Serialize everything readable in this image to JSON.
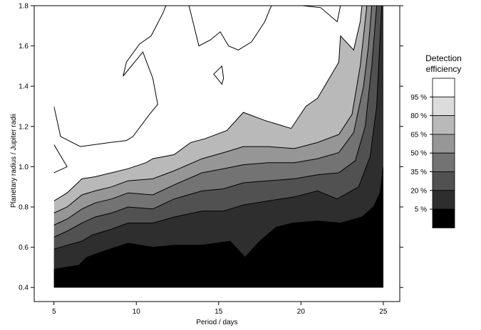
{
  "chart_data": {
    "type": "contour",
    "xlabel": "Period / days",
    "ylabel": "Planetary radius / Jupiter radii",
    "xlim": [
      3.8,
      26.0
    ],
    "ylim": [
      0.33,
      1.8
    ],
    "x_ticks": [
      {
        "value": 5,
        "label": "5"
      },
      {
        "value": 10,
        "label": "10"
      },
      {
        "value": 15,
        "label": "15"
      },
      {
        "value": 20,
        "label": "20"
      },
      {
        "value": 25,
        "label": "25"
      }
    ],
    "y_ticks": [
      {
        "value": 0.4,
        "label": "0.4"
      },
      {
        "value": 0.6,
        "label": "0.6"
      },
      {
        "value": 0.8,
        "label": "0.8"
      },
      {
        "value": 1.0,
        "label": "1.0"
      },
      {
        "value": 1.2,
        "label": "1.2"
      },
      {
        "value": 1.4,
        "label": "1.4"
      },
      {
        "value": 1.6,
        "label": "1.6"
      },
      {
        "value": 1.8,
        "label": "1.8"
      }
    ],
    "data_extent": {
      "x": [
        5,
        25
      ],
      "y": [
        0.4,
        1.8
      ]
    },
    "colorbar": {
      "title_lines": [
        "Detection",
        "efficiency"
      ],
      "bands": [
        {
          "lower": 95,
          "upper": 100,
          "color": "#ffffff"
        },
        {
          "lower": 80,
          "upper": 95,
          "color": "#dcdcdc"
        },
        {
          "lower": 65,
          "upper": 80,
          "color": "#b9b9b9"
        },
        {
          "lower": 50,
          "upper": 65,
          "color": "#969696"
        },
        {
          "lower": 35,
          "upper": 50,
          "color": "#737373"
        },
        {
          "lower": 20,
          "upper": 35,
          "color": "#515151"
        },
        {
          "lower": 5,
          "upper": 20,
          "color": "#2e2e2e"
        },
        {
          "lower": 0,
          "upper": 5,
          "color": "#000000"
        }
      ],
      "labels": [
        "95 %",
        "80 %",
        "65 %",
        "50 %",
        "35 %",
        "20 %",
        "5 %"
      ]
    },
    "contours": [
      {
        "level": 5,
        "points": [
          [
            5,
            0.49
          ],
          [
            5.7,
            0.5
          ],
          [
            6.5,
            0.51
          ],
          [
            7,
            0.55
          ],
          [
            8,
            0.58
          ],
          [
            9.5,
            0.62
          ],
          [
            11,
            0.6
          ],
          [
            12.3,
            0.61
          ],
          [
            14,
            0.61
          ],
          [
            15.7,
            0.63
          ],
          [
            16.6,
            0.55
          ],
          [
            17.5,
            0.63
          ],
          [
            18.5,
            0.7
          ],
          [
            19.5,
            0.72
          ],
          [
            21,
            0.73
          ],
          [
            22.4,
            0.72
          ],
          [
            23.7,
            0.75
          ],
          [
            24.4,
            0.8
          ],
          [
            24.8,
            0.87
          ],
          [
            25,
            1.0
          ]
        ]
      },
      {
        "level": 20,
        "points": [
          [
            5,
            0.59
          ],
          [
            5.8,
            0.61
          ],
          [
            6.7,
            0.63
          ],
          [
            7.3,
            0.66
          ],
          [
            8.5,
            0.69
          ],
          [
            9.5,
            0.72
          ],
          [
            11,
            0.72
          ],
          [
            12.3,
            0.75
          ],
          [
            14,
            0.78
          ],
          [
            15.3,
            0.78
          ],
          [
            16.5,
            0.81
          ],
          [
            18,
            0.83
          ],
          [
            19.6,
            0.85
          ],
          [
            21,
            0.88
          ],
          [
            22.2,
            0.84
          ],
          [
            23.5,
            0.9
          ],
          [
            24.2,
            1.05
          ],
          [
            24.6,
            1.3
          ],
          [
            24.9,
            1.8
          ]
        ]
      },
      {
        "level": 35,
        "points": [
          [
            5,
            0.65
          ],
          [
            5.8,
            0.68
          ],
          [
            6.7,
            0.72
          ],
          [
            7.5,
            0.75
          ],
          [
            8.5,
            0.77
          ],
          [
            9.5,
            0.8
          ],
          [
            11,
            0.79
          ],
          [
            12.3,
            0.84
          ],
          [
            14,
            0.88
          ],
          [
            15.3,
            0.89
          ],
          [
            16.5,
            0.92
          ],
          [
            18,
            0.93
          ],
          [
            19.6,
            0.94
          ],
          [
            21,
            0.96
          ],
          [
            22.3,
            0.97
          ],
          [
            23.3,
            1.03
          ],
          [
            23.9,
            1.2
          ],
          [
            24.3,
            1.5
          ],
          [
            24.6,
            1.8
          ]
        ]
      },
      {
        "level": 50,
        "points": [
          [
            5,
            0.71
          ],
          [
            5.8,
            0.74
          ],
          [
            6.7,
            0.79
          ],
          [
            7.5,
            0.82
          ],
          [
            8.5,
            0.84
          ],
          [
            9.5,
            0.87
          ],
          [
            11,
            0.86
          ],
          [
            12.3,
            0.91
          ],
          [
            14,
            0.97
          ],
          [
            15.3,
            0.99
          ],
          [
            16.5,
            1.01
          ],
          [
            18,
            1.02
          ],
          [
            19.6,
            1.02
          ],
          [
            21,
            1.04
          ],
          [
            22.3,
            1.07
          ],
          [
            23.2,
            1.17
          ],
          [
            23.8,
            1.4
          ],
          [
            24.1,
            1.6
          ],
          [
            24.3,
            1.8
          ]
        ]
      },
      {
        "level": 65,
        "points": [
          [
            5,
            0.77
          ],
          [
            5.8,
            0.8
          ],
          [
            6.7,
            0.86
          ],
          [
            7.5,
            0.88
          ],
          [
            8.5,
            0.9
          ],
          [
            9.5,
            0.93
          ],
          [
            11,
            0.94
          ],
          [
            12.3,
            0.98
          ],
          [
            14,
            1.04
          ],
          [
            15.3,
            1.07
          ],
          [
            16.5,
            1.1
          ],
          [
            18,
            1.1
          ],
          [
            19.6,
            1.09
          ],
          [
            21,
            1.12
          ],
          [
            22.3,
            1.16
          ],
          [
            23.1,
            1.26
          ],
          [
            23.6,
            1.5
          ],
          [
            23.8,
            1.65
          ],
          [
            24.0,
            1.8
          ]
        ]
      },
      {
        "level": 80,
        "points": [
          [
            5,
            0.83
          ],
          [
            5.8,
            0.87
          ],
          [
            6.7,
            0.94
          ],
          [
            7.5,
            0.95
          ],
          [
            8.5,
            0.97
          ],
          [
            9.5,
            0.99
          ],
          [
            10.6,
            1.02
          ],
          [
            11,
            1.04
          ],
          [
            12.3,
            1.06
          ],
          [
            13.3,
            1.12
          ],
          [
            14.2,
            1.14
          ],
          [
            15.5,
            1.18
          ],
          [
            16.5,
            1.27
          ],
          [
            17.8,
            1.23
          ],
          [
            19.4,
            1.19
          ],
          [
            20.3,
            1.3
          ],
          [
            21.0,
            1.34
          ],
          [
            21.8,
            1.45
          ],
          [
            22.3,
            1.52
          ],
          [
            22.4,
            1.65
          ],
          [
            23.2,
            1.58
          ],
          [
            23.6,
            1.72
          ],
          [
            23.7,
            1.8
          ]
        ]
      },
      {
        "level": 95,
        "closed": false,
        "points": [
          [
            5,
            0.97
          ],
          [
            5.8,
            1.0
          ],
          [
            5,
            1.11
          ]
        ]
      },
      {
        "level": 95,
        "closed": false,
        "points": [
          [
            5,
            1.3
          ],
          [
            5.4,
            1.15
          ],
          [
            6.6,
            1.1
          ],
          [
            8.4,
            1.12
          ],
          [
            9.4,
            1.13
          ],
          [
            9.8,
            1.15
          ],
          [
            10.8,
            1.26
          ],
          [
            11.3,
            1.31
          ],
          [
            11.0,
            1.44
          ],
          [
            10.4,
            1.57
          ],
          [
            9.2,
            1.45
          ],
          [
            9.4,
            1.52
          ],
          [
            10.2,
            1.61
          ],
          [
            10.9,
            1.65
          ],
          [
            11.6,
            1.76
          ],
          [
            11.8,
            1.8
          ]
        ]
      },
      {
        "level": 95,
        "closed": false,
        "points": [
          [
            13.2,
            1.8
          ],
          [
            13.8,
            1.6
          ],
          [
            14.5,
            1.63
          ],
          [
            15.1,
            1.67
          ],
          [
            15.6,
            1.6
          ],
          [
            16.2,
            1.58
          ],
          [
            17.0,
            1.62
          ],
          [
            17.8,
            1.72
          ],
          [
            18.2,
            1.8
          ]
        ]
      },
      {
        "level": 95,
        "closed": true,
        "points": [
          [
            14.7,
            1.46
          ],
          [
            15.2,
            1.5
          ],
          [
            15.3,
            1.44
          ],
          [
            15.2,
            1.41
          ]
        ]
      },
      {
        "level": 95,
        "closed": false,
        "points": [
          [
            20.1,
            1.8
          ],
          [
            21.2,
            1.79
          ],
          [
            22.2,
            1.72
          ],
          [
            22.4,
            1.8
          ]
        ]
      }
    ]
  }
}
